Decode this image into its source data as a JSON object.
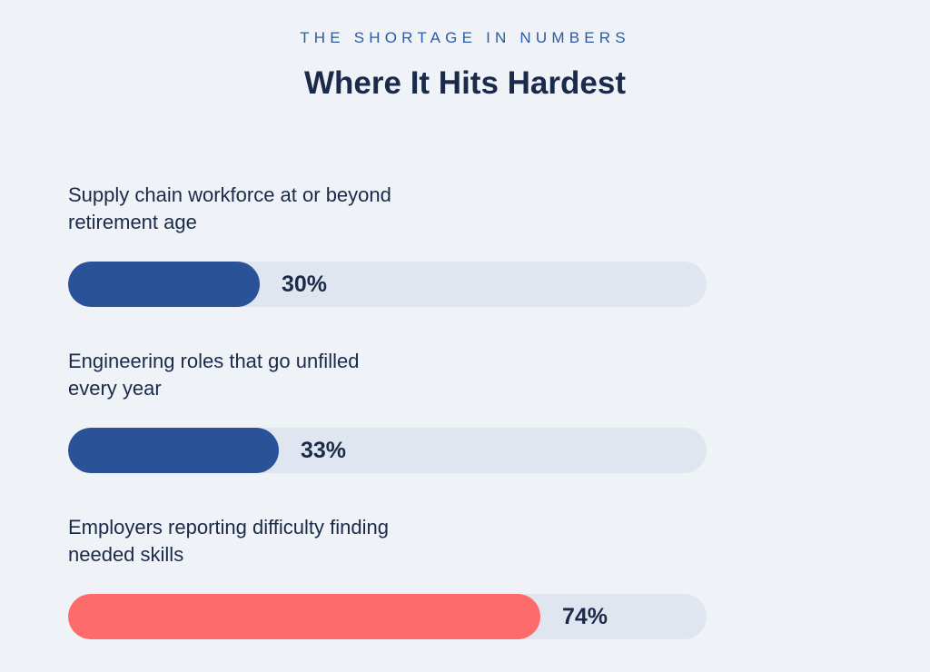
{
  "header": {
    "eyebrow": "THE SHORTAGE IN NUMBERS",
    "title": "Where It Hits Hardest"
  },
  "colors": {
    "primary": "#2a5298",
    "highlight": "#ff6b6b",
    "track": "#dfe6f0",
    "text": "#1b2a4a",
    "background": "#eff3f8"
  },
  "chart_data": {
    "type": "bar",
    "orientation": "horizontal",
    "title": "Where It Hits Hardest",
    "categories": [
      "Supply chain workforce at or beyond retirement age",
      "Engineering roles that go unfilled every year",
      "Employers reporting difficulty finding needed skills"
    ],
    "values": [
      30,
      33,
      74
    ],
    "value_labels": [
      "30%",
      "33%",
      "74%"
    ],
    "unit": "%",
    "xlim": [
      0,
      100
    ],
    "bar_colors": [
      "#2a5298",
      "#2a5298",
      "#ff6b6b"
    ],
    "grid": false
  }
}
